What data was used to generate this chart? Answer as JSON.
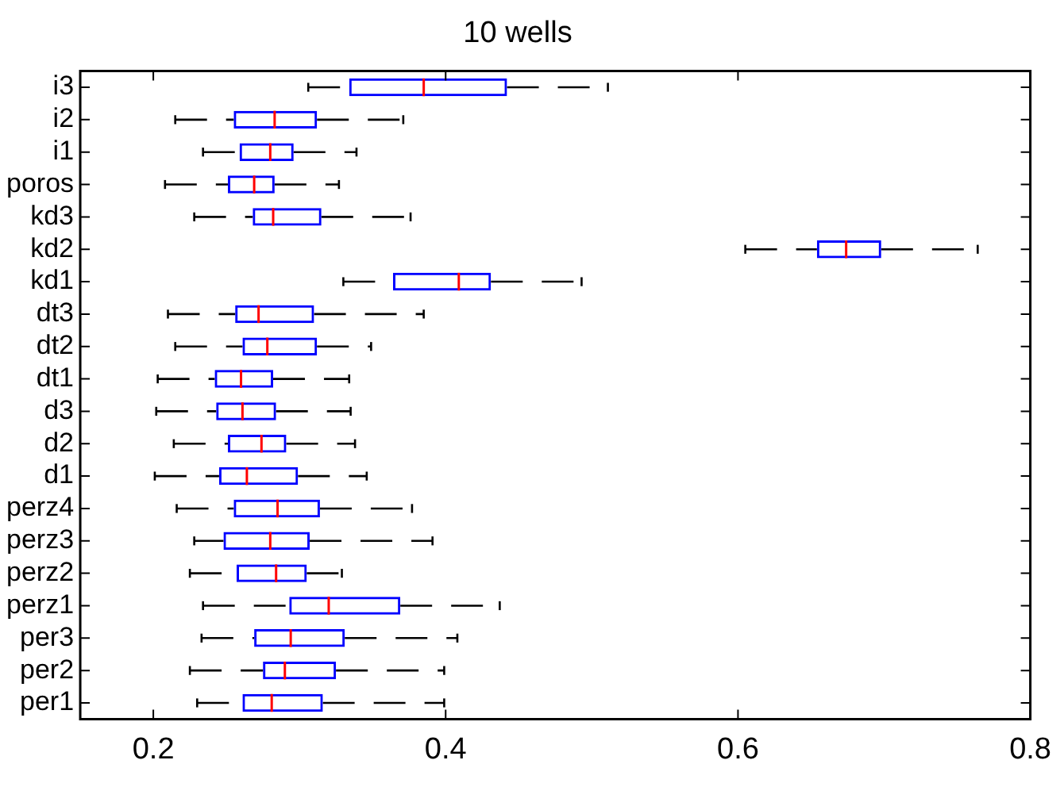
{
  "chart_data": {
    "type": "box",
    "title": "10 wells",
    "orientation": "horizontal",
    "categories": [
      "i3",
      "i2",
      "i1",
      "poros",
      "kd3",
      "kd2",
      "kd1",
      "dt3",
      "dt2",
      "dt1",
      "d3",
      "d2",
      "d1",
      "perz4",
      "perz3",
      "perz2",
      "perz1",
      "per3",
      "per2",
      "per1"
    ],
    "xlim": [
      0.15,
      0.8
    ],
    "xticks": [
      0.2,
      0.4,
      0.6,
      0.8
    ],
    "grid": false,
    "series": [
      {
        "color": "#0000ff",
        "boxes": [
          {
            "low": 0.306,
            "q1": 0.334,
            "median": 0.385,
            "q3": 0.442,
            "high": 0.511
          },
          {
            "low": 0.215,
            "q1": 0.255,
            "median": 0.283,
            "q3": 0.312,
            "high": 0.371
          },
          {
            "low": 0.234,
            "q1": 0.259,
            "median": 0.28,
            "q3": 0.296,
            "high": 0.339
          },
          {
            "low": 0.208,
            "q1": 0.251,
            "median": 0.269,
            "q3": 0.283,
            "high": 0.327
          },
          {
            "low": 0.228,
            "q1": 0.268,
            "median": 0.282,
            "q3": 0.315,
            "high": 0.376
          },
          {
            "low": 0.605,
            "q1": 0.654,
            "median": 0.674,
            "q3": 0.698,
            "high": 0.764
          },
          {
            "low": 0.33,
            "q1": 0.364,
            "median": 0.409,
            "q3": 0.431,
            "high": 0.493
          },
          {
            "low": 0.21,
            "q1": 0.256,
            "median": 0.272,
            "q3": 0.31,
            "high": 0.385
          },
          {
            "low": 0.215,
            "q1": 0.261,
            "median": 0.278,
            "q3": 0.312,
            "high": 0.349
          },
          {
            "low": 0.203,
            "q1": 0.242,
            "median": 0.26,
            "q3": 0.282,
            "high": 0.334
          },
          {
            "low": 0.202,
            "q1": 0.243,
            "median": 0.261,
            "q3": 0.284,
            "high": 0.335
          },
          {
            "low": 0.214,
            "q1": 0.251,
            "median": 0.274,
            "q3": 0.291,
            "high": 0.338
          },
          {
            "low": 0.201,
            "q1": 0.245,
            "median": 0.264,
            "q3": 0.299,
            "high": 0.346
          },
          {
            "low": 0.216,
            "q1": 0.255,
            "median": 0.285,
            "q3": 0.314,
            "high": 0.377
          },
          {
            "low": 0.228,
            "q1": 0.248,
            "median": 0.28,
            "q3": 0.307,
            "high": 0.391
          },
          {
            "low": 0.225,
            "q1": 0.257,
            "median": 0.284,
            "q3": 0.305,
            "high": 0.329
          },
          {
            "low": 0.234,
            "q1": 0.293,
            "median": 0.32,
            "q3": 0.369,
            "high": 0.437
          },
          {
            "low": 0.233,
            "q1": 0.269,
            "median": 0.294,
            "q3": 0.331,
            "high": 0.408
          },
          {
            "low": 0.225,
            "q1": 0.275,
            "median": 0.29,
            "q3": 0.325,
            "high": 0.399
          },
          {
            "low": 0.23,
            "q1": 0.261,
            "median": 0.281,
            "q3": 0.316,
            "high": 0.399
          }
        ]
      }
    ]
  }
}
